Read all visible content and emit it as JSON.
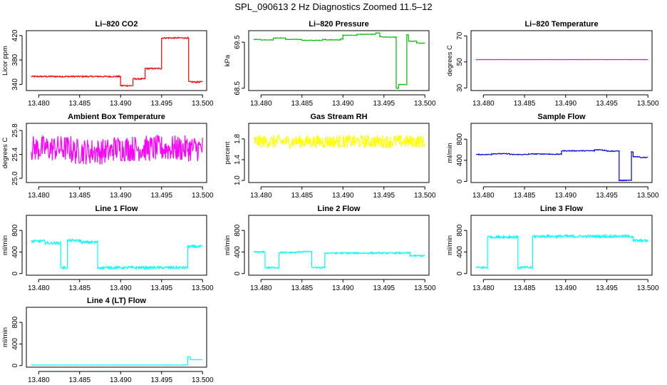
{
  "title": "SPL_090613  2 Hz Diagnostics Zoomed 11.5–12",
  "x_ticks": [
    "13.480",
    "13.485",
    "13.490",
    "13.495",
    "13.500"
  ],
  "chart_data": [
    {
      "type": "line",
      "title": "Li–820 CO2",
      "ylabel": "Licor ppm",
      "color": "#ff0000",
      "xlim": [
        13.4785,
        13.5005
      ],
      "ylim": [
        330,
        428
      ],
      "yticks": [
        "340",
        "380",
        "420"
      ],
      "ytick_values": [
        340,
        380,
        420
      ],
      "noise": 1.2,
      "segments": [
        [
          13.4791,
          13.49,
          353
        ],
        [
          13.49,
          13.4915,
          338
        ],
        [
          13.4915,
          13.493,
          349
        ],
        [
          13.493,
          13.495,
          366
        ],
        [
          13.495,
          13.4983,
          416
        ],
        [
          13.4983,
          13.5,
          344
        ]
      ]
    },
    {
      "type": "line",
      "title": "Li–820 Pressure",
      "ylabel": "kPa",
      "color": "#00bb00",
      "xlim": [
        13.4785,
        13.5005
      ],
      "ylim": [
        68.45,
        69.75
      ],
      "yticks": [
        "68.5",
        "69.5"
      ],
      "ytick_values": [
        68.5,
        69.5
      ],
      "noise": 0.006,
      "segments": [
        [
          13.4791,
          13.48,
          69.56
        ],
        [
          13.48,
          13.4815,
          69.55
        ],
        [
          13.4815,
          13.483,
          69.59
        ],
        [
          13.483,
          13.485,
          69.56
        ],
        [
          13.485,
          13.4875,
          69.54
        ],
        [
          13.4875,
          13.488,
          69.56
        ],
        [
          13.488,
          13.4897,
          69.55
        ],
        [
          13.4897,
          13.49,
          69.57
        ],
        [
          13.49,
          13.4917,
          69.65
        ],
        [
          13.4917,
          13.494,
          69.67
        ],
        [
          13.494,
          13.4945,
          69.7
        ],
        [
          13.4945,
          13.4948,
          69.62
        ],
        [
          13.4948,
          13.4965,
          69.61
        ],
        [
          13.4965,
          13.4968,
          68.5
        ],
        [
          13.4968,
          13.4978,
          68.58
        ],
        [
          13.4978,
          13.498,
          69.66
        ],
        [
          13.498,
          13.499,
          69.52
        ],
        [
          13.499,
          13.5,
          69.48
        ]
      ]
    },
    {
      "type": "line",
      "title": "Li–820 Temperature",
      "ylabel": "degrees C",
      "color": "#ff00ff",
      "xlim": [
        13.4785,
        13.5005
      ],
      "ylim": [
        28,
        74
      ],
      "yticks": [
        "30",
        "50",
        "70"
      ],
      "ytick_values": [
        30,
        50,
        70
      ],
      "noise": 0.05,
      "segments": [
        [
          13.4791,
          13.5,
          51.8
        ]
      ]
    },
    {
      "type": "line",
      "title": "Ambient Box Temperature",
      "ylabel": "degrees C",
      "color": "#ff00ff",
      "xlim": [
        13.4785,
        13.5005
      ],
      "ylim": [
        24.93,
        25.92
      ],
      "yticks": [
        "25.0",
        "25.4",
        "25.8"
      ],
      "ytick_values": [
        25.0,
        25.4,
        25.8
      ],
      "noise": 0.22,
      "segments": [
        [
          13.4791,
          13.484,
          25.5
        ],
        [
          13.484,
          13.489,
          25.45
        ],
        [
          13.489,
          13.5,
          25.5
        ]
      ]
    },
    {
      "type": "line",
      "title": "Gas Stream RH",
      "ylabel": "percent",
      "color": "#ffff00",
      "xlim": [
        13.4785,
        13.5005
      ],
      "ylim": [
        0.96,
        2.1
      ],
      "yticks": [
        "1.0",
        "1.4",
        "1.8"
      ],
      "ytick_values": [
        1.0,
        1.4,
        1.8
      ],
      "noise": 0.13,
      "segments": [
        [
          13.4791,
          13.5,
          1.75
        ]
      ]
    },
    {
      "type": "line",
      "title": "Sample Flow",
      "ylabel": "ml/min",
      "color": "#0000dd",
      "xlim": [
        13.4785,
        13.5005
      ],
      "ylim": [
        -20,
        1100
      ],
      "yticks": [
        "0",
        "400",
        "800"
      ],
      "ytick_values": [
        0,
        400,
        800
      ],
      "noise": 8,
      "segments": [
        [
          13.4791,
          13.481,
          510
        ],
        [
          13.481,
          13.4832,
          525
        ],
        [
          13.4832,
          13.4855,
          510
        ],
        [
          13.4855,
          13.488,
          520
        ],
        [
          13.488,
          13.4895,
          515
        ],
        [
          13.4895,
          13.4935,
          580
        ],
        [
          13.4935,
          13.4945,
          600
        ],
        [
          13.4945,
          13.495,
          590
        ],
        [
          13.495,
          13.4965,
          575
        ],
        [
          13.4965,
          13.498,
          20
        ],
        [
          13.498,
          13.4982,
          560
        ],
        [
          13.4982,
          13.499,
          470
        ],
        [
          13.499,
          13.5,
          455
        ]
      ]
    },
    {
      "type": "line",
      "title": "Line 1 Flow",
      "ylabel": "ml/min",
      "color": "#00ffff",
      "xlim": [
        13.4785,
        13.5005
      ],
      "ylim": [
        -30,
        1080
      ],
      "yticks": [
        "0",
        "400",
        "800"
      ],
      "ytick_values": [
        0,
        400,
        800
      ],
      "noise": 25,
      "segments": [
        [
          13.4791,
          13.4808,
          600
        ],
        [
          13.4808,
          13.4827,
          565
        ],
        [
          13.4827,
          13.4835,
          110
        ],
        [
          13.4835,
          13.4852,
          610
        ],
        [
          13.4852,
          13.4872,
          580
        ],
        [
          13.4872,
          13.4982,
          110
        ],
        [
          13.4982,
          13.5,
          500
        ]
      ]
    },
    {
      "type": "line",
      "title": "Line 2 Flow",
      "ylabel": "ml/min",
      "color": "#00ffff",
      "xlim": [
        13.4785,
        13.5005
      ],
      "ylim": [
        -30,
        1080
      ],
      "yticks": [
        "0",
        "400",
        "800"
      ],
      "ytick_values": [
        0,
        400,
        800
      ],
      "noise": 15,
      "segments": [
        [
          13.4791,
          13.4805,
          400
        ],
        [
          13.4805,
          13.4822,
          110
        ],
        [
          13.4822,
          13.4845,
          390
        ],
        [
          13.4845,
          13.4862,
          405
        ],
        [
          13.4862,
          13.4878,
          110
        ],
        [
          13.4878,
          13.4982,
          380
        ],
        [
          13.4982,
          13.5,
          330
        ]
      ]
    },
    {
      "type": "line",
      "title": "Line 3 Flow",
      "ylabel": "ml/min",
      "color": "#00ffff",
      "xlim": [
        13.4785,
        13.5005
      ],
      "ylim": [
        -30,
        1080
      ],
      "yticks": [
        "0",
        "400",
        "800"
      ],
      "ytick_values": [
        0,
        400,
        800
      ],
      "noise": 25,
      "segments": [
        [
          13.4791,
          13.4805,
          110
        ],
        [
          13.4805,
          13.4842,
          680
        ],
        [
          13.4842,
          13.486,
          110
        ],
        [
          13.486,
          13.4982,
          690
        ],
        [
          13.4982,
          13.5,
          610
        ]
      ]
    },
    {
      "type": "line",
      "title": "Line 4 (LT) Flow",
      "ylabel": "ml/min",
      "color": "#00ffff",
      "xlim": [
        13.4785,
        13.5005
      ],
      "ylim": [
        -30,
        1080
      ],
      "yticks": [
        "0",
        "400",
        "800"
      ],
      "ytick_values": [
        0,
        400,
        800
      ],
      "noise": 3,
      "segments": [
        [
          13.4791,
          13.4982,
          10
        ],
        [
          13.4982,
          13.4985,
          160
        ],
        [
          13.4985,
          13.5,
          110
        ]
      ]
    }
  ]
}
